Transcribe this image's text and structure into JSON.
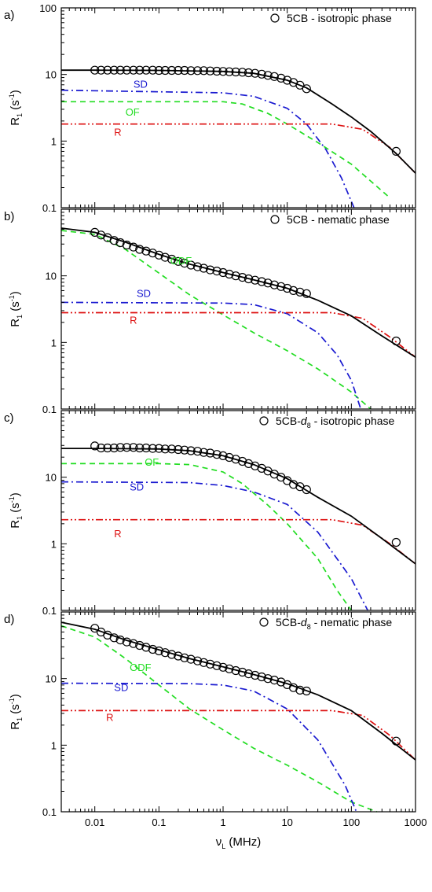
{
  "chart_data": [
    {
      "type": "line",
      "panel_label": "a)",
      "legend": {
        "marker": "circle",
        "text": "5CB - isotropic phase",
        "sub": "",
        "tail": ""
      },
      "ylabel": {
        "base": "R",
        "sub": "1",
        "unit_pre": " (s",
        "sup": "-1",
        "unit_post": ")"
      },
      "ylim": [
        0.1,
        100
      ],
      "yscale": "log",
      "y_ticklabels": [
        "100",
        "10",
        "1",
        "0.1"
      ],
      "measured": {
        "x": [
          0.01,
          0.0125,
          0.0158,
          0.02,
          0.025,
          0.0315,
          0.04,
          0.05,
          0.063,
          0.08,
          0.1,
          0.125,
          0.158,
          0.2,
          0.25,
          0.315,
          0.4,
          0.5,
          0.63,
          0.8,
          1.0,
          1.25,
          1.58,
          2.0,
          2.5,
          3.15,
          4.0,
          5.0,
          6.3,
          8.0,
          10,
          12.5,
          15.8,
          20,
          500
        ],
        "y": [
          11.6,
          11.6,
          11.6,
          11.6,
          11.6,
          11.6,
          11.6,
          11.6,
          11.6,
          11.6,
          11.5,
          11.5,
          11.5,
          11.5,
          11.5,
          11.4,
          11.4,
          11.4,
          11.3,
          11.2,
          11.1,
          11.0,
          10.9,
          10.8,
          10.6,
          10.4,
          10.1,
          9.7,
          9.3,
          8.8,
          8.2,
          7.6,
          6.9,
          6.1,
          0.7
        ]
      },
      "fit": {
        "x": [
          0.003,
          0.01,
          0.1,
          1,
          3,
          10,
          20,
          50,
          100,
          200,
          500,
          1000
        ],
        "y": [
          11.6,
          11.6,
          11.5,
          11.1,
          10.4,
          8.2,
          6.3,
          3.6,
          2.3,
          1.4,
          0.65,
          0.33
        ]
      },
      "series": [
        {
          "name": "SD",
          "color": "#1a1ad0",
          "dash": "dashdot",
          "x": [
            0.003,
            1,
            3,
            10,
            20,
            40,
            70,
            110
          ],
          "y": [
            5.8,
            5.3,
            4.7,
            3.1,
            1.8,
            0.75,
            0.28,
            0.1
          ]
        },
        {
          "name": "OF",
          "color": "#22dd22",
          "dash": "dashed",
          "x": [
            0.003,
            1,
            2,
            5,
            10,
            30,
            100,
            400
          ],
          "y": [
            3.9,
            3.9,
            3.6,
            2.6,
            1.8,
            0.95,
            0.45,
            0.14
          ]
        },
        {
          "name": "R",
          "color": "#dd1111",
          "dash": "dashdotdot",
          "x": [
            0.003,
            50,
            150,
            400,
            1000
          ],
          "y": [
            1.8,
            1.8,
            1.5,
            0.8,
            0.33
          ]
        }
      ],
      "series_label_pos": [
        [
          0.04,
          6.3
        ],
        [
          0.03,
          2.4
        ],
        [
          0.02,
          1.2
        ]
      ]
    },
    {
      "type": "line",
      "panel_label": "b)",
      "legend": {
        "marker": "circle",
        "text": "5CB - nematic phase",
        "sub": "",
        "tail": ""
      },
      "ylabel": {
        "base": "R",
        "sub": "1",
        "unit_pre": " (s",
        "sup": "-1",
        "unit_post": ")"
      },
      "ylim": [
        0.1,
        100
      ],
      "yscale": "log",
      "y_ticklabels": [
        "",
        "10",
        "1",
        "0.1"
      ],
      "measured": {
        "x": [
          0.01,
          0.0125,
          0.0158,
          0.02,
          0.025,
          0.0315,
          0.04,
          0.05,
          0.063,
          0.08,
          0.1,
          0.125,
          0.158,
          0.2,
          0.25,
          0.315,
          0.4,
          0.5,
          0.63,
          0.8,
          1.0,
          1.25,
          1.58,
          2.0,
          2.5,
          3.15,
          4.0,
          5.0,
          6.3,
          8.0,
          10,
          12.5,
          15.8,
          20,
          500
        ],
        "y": [
          45,
          41,
          37.5,
          34,
          31.5,
          29,
          27,
          25,
          23.5,
          22,
          20.5,
          19,
          17.8,
          16.5,
          15.5,
          14.5,
          13.7,
          13,
          12.3,
          11.8,
          11.2,
          10.6,
          10,
          9.5,
          9,
          8.6,
          8.2,
          7.8,
          7.3,
          6.9,
          6.5,
          6,
          5.7,
          5.4,
          1.05
        ]
      },
      "fit": {
        "x": [
          0.003,
          0.01,
          0.03,
          0.1,
          0.3,
          1,
          3,
          10,
          30,
          100,
          300,
          1000
        ],
        "y": [
          52,
          45,
          32,
          21,
          15,
          11.2,
          8.7,
          6.5,
          4.3,
          2.5,
          1.25,
          0.6
        ]
      },
      "series": [
        {
          "name": "ODF",
          "color": "#22dd22",
          "dash": "dashed",
          "x": [
            0.003,
            0.01,
            0.03,
            0.1,
            0.3,
            1,
            3,
            10,
            30,
            100,
            200
          ],
          "y": [
            48,
            42,
            25,
            11,
            5.2,
            2.6,
            1.4,
            0.75,
            0.4,
            0.18,
            0.1
          ]
        },
        {
          "name": "SD",
          "color": "#1a1ad0",
          "dash": "dashdot",
          "x": [
            0.003,
            1,
            3,
            10,
            30,
            60,
            100,
            140
          ],
          "y": [
            4,
            3.9,
            3.7,
            2.7,
            1.4,
            0.65,
            0.27,
            0.1
          ]
        },
        {
          "name": "R",
          "color": "#dd1111",
          "dash": "dashdotdot",
          "x": [
            0.003,
            50,
            150,
            400,
            1000
          ],
          "y": [
            2.8,
            2.8,
            2.3,
            1.2,
            0.6
          ]
        }
      ],
      "series_label_pos": [
        [
          0.15,
          15
        ],
        [
          0.045,
          4.8
        ],
        [
          0.035,
          1.9
        ]
      ]
    },
    {
      "type": "line",
      "panel_label": "c)",
      "legend": {
        "marker": "circle",
        "text": "5CB-",
        "sub": "8",
        "tail": " - isotropic phase"
      },
      "ylabel": {
        "base": "R",
        "sub": "1",
        "unit_pre": " (s",
        "sup": "-1",
        "unit_post": ")"
      },
      "ylim": [
        0.1,
        100
      ],
      "yscale": "log",
      "y_ticklabels": [
        "",
        "10",
        "1",
        "0.1"
      ],
      "measured": {
        "x": [
          0.01,
          0.0125,
          0.0158,
          0.02,
          0.025,
          0.0315,
          0.04,
          0.05,
          0.063,
          0.08,
          0.1,
          0.125,
          0.158,
          0.2,
          0.25,
          0.315,
          0.4,
          0.5,
          0.63,
          0.8,
          1.0,
          1.25,
          1.58,
          2.0,
          2.5,
          3.15,
          4.0,
          5.0,
          6.3,
          8.0,
          10,
          12.5,
          15.8,
          20,
          500
        ],
        "y": [
          29.5,
          27.5,
          27.5,
          27.5,
          28,
          28,
          28,
          27.5,
          27.5,
          27,
          27,
          26.5,
          26.5,
          26,
          25.5,
          25,
          24.5,
          23.5,
          23,
          22,
          21,
          19.8,
          18.6,
          17.3,
          16,
          14.8,
          13.6,
          12.4,
          11.1,
          10,
          8.9,
          7.8,
          7.2,
          6.5,
          1.05
        ]
      },
      "fit": {
        "x": [
          0.003,
          0.01,
          0.1,
          0.3,
          1,
          3,
          10,
          30,
          100,
          300,
          1000
        ],
        "y": [
          27,
          27,
          26.5,
          25,
          21,
          15.5,
          9.5,
          5,
          2.6,
          1.2,
          0.5
        ]
      },
      "series": [
        {
          "name": "OF",
          "color": "#22dd22",
          "dash": "dashed",
          "x": [
            0.003,
            0.1,
            0.3,
            1,
            2,
            5,
            10,
            30,
            60,
            100
          ],
          "y": [
            16,
            16,
            15.5,
            12,
            8,
            3.8,
            2,
            0.6,
            0.2,
            0.1
          ]
        },
        {
          "name": "SD",
          "color": "#1a1ad0",
          "dash": "dashdot",
          "x": [
            0.003,
            0.3,
            1,
            3,
            10,
            30,
            100,
            180
          ],
          "y": [
            8.5,
            8.3,
            7.5,
            6,
            3.9,
            1.5,
            0.3,
            0.1
          ]
        },
        {
          "name": "R",
          "color": "#dd1111",
          "dash": "dashdotdot",
          "x": [
            0.003,
            50,
            150,
            400,
            1000
          ],
          "y": [
            2.3,
            2.3,
            1.9,
            1,
            0.5
          ]
        }
      ],
      "series_label_pos": [
        [
          0.06,
          15
        ],
        [
          0.035,
          6.3
        ],
        [
          0.02,
          1.25
        ]
      ]
    },
    {
      "type": "line",
      "panel_label": "d)",
      "legend": {
        "marker": "circle",
        "text": "5CB-",
        "sub": "8",
        "tail": " - nematic phase"
      },
      "ylabel": {
        "base": "R",
        "sub": "1",
        "unit_pre": " (s",
        "sup": "-1",
        "unit_post": ")"
      },
      "ylim": [
        0.1,
        100
      ],
      "yscale": "log",
      "y_ticklabels": [
        "",
        "10",
        "1",
        "0.1"
      ],
      "xlabel": {
        "base": "ν",
        "sub": "L",
        "tail": " (MHz)"
      },
      "xscale": "log",
      "xlim": [
        0.003,
        1000
      ],
      "x_ticklabels": [
        "0.01",
        "0.1",
        "1",
        "10",
        "100",
        "1000"
      ],
      "measured": {
        "x": [
          0.01,
          0.0125,
          0.0158,
          0.02,
          0.025,
          0.0315,
          0.04,
          0.05,
          0.063,
          0.08,
          0.1,
          0.125,
          0.158,
          0.2,
          0.25,
          0.315,
          0.4,
          0.5,
          0.63,
          0.8,
          1.0,
          1.25,
          1.58,
          2.0,
          2.5,
          3.15,
          4.0,
          5.0,
          6.3,
          8.0,
          10,
          12.5,
          15.8,
          20,
          500
        ],
        "y": [
          57,
          50,
          45,
          41,
          38,
          35.5,
          33.5,
          31.5,
          29.5,
          27.5,
          26,
          24.5,
          23,
          21.8,
          20.5,
          19.5,
          18.4,
          17.4,
          16.5,
          15.6,
          14.8,
          14,
          13.2,
          12.5,
          11.8,
          11.2,
          10.6,
          10,
          9.5,
          8.9,
          8.1,
          7.3,
          6.7,
          6.5,
          1.15
        ]
      },
      "fit": {
        "x": [
          0.003,
          0.01,
          0.03,
          0.1,
          0.3,
          1,
          3,
          10,
          30,
          100,
          300,
          1000
        ],
        "y": [
          70,
          55,
          38,
          27,
          20,
          15,
          11.5,
          8.4,
          5.7,
          3.3,
          1.5,
          0.6
        ]
      },
      "series": [
        {
          "name": "ODF",
          "color": "#22dd22",
          "dash": "dashed",
          "x": [
            0.003,
            0.01,
            0.03,
            0.1,
            0.3,
            1,
            3,
            10,
            30,
            100,
            250
          ],
          "y": [
            62,
            42,
            20,
            8,
            3.5,
            1.7,
            0.9,
            0.5,
            0.28,
            0.14,
            0.1
          ]
        },
        {
          "name": "SD",
          "color": "#1a1ad0",
          "dash": "dashdot",
          "x": [
            0.003,
            0.3,
            1,
            3,
            10,
            30,
            80,
            120
          ],
          "y": [
            8.5,
            8.4,
            8,
            6.5,
            3.5,
            1.2,
            0.25,
            0.1
          ]
        },
        {
          "name": "R",
          "color": "#dd1111",
          "dash": "dashdotdot",
          "x": [
            0.003,
            50,
            150,
            400,
            1000
          ],
          "y": [
            3.3,
            3.3,
            2.8,
            1.4,
            0.6
          ]
        }
      ],
      "series_label_pos": [
        [
          0.035,
          13
        ],
        [
          0.02,
          6.5
        ],
        [
          0.015,
          2.3
        ]
      ]
    }
  ]
}
